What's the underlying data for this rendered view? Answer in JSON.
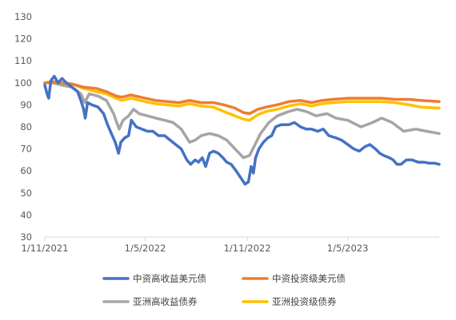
{
  "chart_data": {
    "type": "line",
    "title": "",
    "xlabel": "",
    "ylabel": "",
    "ylim": [
      30,
      130
    ],
    "y_ticks": [
      30,
      40,
      50,
      60,
      70,
      80,
      90,
      100,
      110,
      120,
      130
    ],
    "x_range": [
      "2021-11-01",
      "2023-10-13"
    ],
    "x_ticks": [
      {
        "date": "2021-11-01",
        "label": "1/11/2021"
      },
      {
        "date": "2022-05-01",
        "label": "1/5/2022"
      },
      {
        "date": "2022-11-01",
        "label": "1/11/2022"
      },
      {
        "date": "2023-05-01",
        "label": "1/5/2023"
      }
    ],
    "grid": false,
    "legend_position": "bottom",
    "series": [
      {
        "name": "中资高收益美元债",
        "color": "#4472C4",
        "points": [
          [
            "2021-11-01",
            99
          ],
          [
            "2021-11-05",
            95
          ],
          [
            "2021-11-08",
            93
          ],
          [
            "2021-11-12",
            101
          ],
          [
            "2021-11-18",
            103
          ],
          [
            "2021-11-25",
            100
          ],
          [
            "2021-12-02",
            102
          ],
          [
            "2021-12-10",
            100
          ],
          [
            "2021-12-20",
            98
          ],
          [
            "2021-12-30",
            96
          ],
          [
            "2022-01-05",
            92
          ],
          [
            "2022-01-10",
            88
          ],
          [
            "2022-01-13",
            84
          ],
          [
            "2022-01-17",
            91
          ],
          [
            "2022-01-25",
            90
          ],
          [
            "2022-02-05",
            89
          ],
          [
            "2022-02-15",
            86
          ],
          [
            "2022-02-22",
            81
          ],
          [
            "2022-03-01",
            77
          ],
          [
            "2022-03-08",
            73
          ],
          [
            "2022-03-14",
            68
          ],
          [
            "2022-03-18",
            73
          ],
          [
            "2022-03-25",
            75
          ],
          [
            "2022-04-01",
            76
          ],
          [
            "2022-04-06",
            83
          ],
          [
            "2022-04-15",
            80
          ],
          [
            "2022-04-25",
            79
          ],
          [
            "2022-05-05",
            78
          ],
          [
            "2022-05-15",
            78
          ],
          [
            "2022-05-25",
            76
          ],
          [
            "2022-06-05",
            76
          ],
          [
            "2022-06-15",
            74
          ],
          [
            "2022-06-25",
            72
          ],
          [
            "2022-07-05",
            70
          ],
          [
            "2022-07-15",
            65
          ],
          [
            "2022-07-22",
            63
          ],
          [
            "2022-07-30",
            65
          ],
          [
            "2022-08-05",
            64
          ],
          [
            "2022-08-12",
            66
          ],
          [
            "2022-08-18",
            62
          ],
          [
            "2022-08-25",
            68
          ],
          [
            "2022-09-01",
            69
          ],
          [
            "2022-09-10",
            68
          ],
          [
            "2022-09-18",
            66
          ],
          [
            "2022-09-25",
            64
          ],
          [
            "2022-10-03",
            63
          ],
          [
            "2022-10-12",
            60
          ],
          [
            "2022-10-20",
            57
          ],
          [
            "2022-10-28",
            54
          ],
          [
            "2022-11-03",
            55
          ],
          [
            "2022-11-08",
            62
          ],
          [
            "2022-11-12",
            59
          ],
          [
            "2022-11-16",
            66
          ],
          [
            "2022-11-22",
            70
          ],
          [
            "2022-11-30",
            73
          ],
          [
            "2022-12-08",
            75
          ],
          [
            "2022-12-15",
            76
          ],
          [
            "2022-12-22",
            80
          ],
          [
            "2023-01-01",
            81
          ],
          [
            "2023-01-15",
            81
          ],
          [
            "2023-01-25",
            82
          ],
          [
            "2023-02-05",
            80
          ],
          [
            "2023-02-15",
            79
          ],
          [
            "2023-02-25",
            79
          ],
          [
            "2023-03-08",
            78
          ],
          [
            "2023-03-18",
            79
          ],
          [
            "2023-03-28",
            76
          ],
          [
            "2023-04-10",
            75
          ],
          [
            "2023-04-20",
            74
          ],
          [
            "2023-05-01",
            72
          ],
          [
            "2023-05-12",
            70
          ],
          [
            "2023-05-22",
            69
          ],
          [
            "2023-06-01",
            71
          ],
          [
            "2023-06-10",
            72
          ],
          [
            "2023-06-20",
            70
          ],
          [
            "2023-06-28",
            68
          ],
          [
            "2023-07-05",
            67
          ],
          [
            "2023-07-15",
            66
          ],
          [
            "2023-07-22",
            65
          ],
          [
            "2023-07-29",
            63
          ],
          [
            "2023-08-05",
            63
          ],
          [
            "2023-08-15",
            65
          ],
          [
            "2023-08-25",
            65
          ],
          [
            "2023-09-05",
            64
          ],
          [
            "2023-09-15",
            64
          ],
          [
            "2023-09-25",
            63.5
          ],
          [
            "2023-10-05",
            63.5
          ],
          [
            "2023-10-13",
            63
          ]
        ]
      },
      {
        "name": "中资投资级美元债",
        "color": "#ED7D31",
        "points": [
          [
            "2021-11-01",
            100
          ],
          [
            "2021-11-15",
            100.5
          ],
          [
            "2021-12-01",
            100
          ],
          [
            "2021-12-20",
            99.5
          ],
          [
            "2022-01-10",
            98
          ],
          [
            "2022-02-01",
            97.5
          ],
          [
            "2022-02-20",
            96
          ],
          [
            "2022-03-10",
            94
          ],
          [
            "2022-03-20",
            93.5
          ],
          [
            "2022-04-05",
            94.5
          ],
          [
            "2022-05-01",
            93
          ],
          [
            "2022-05-20",
            92
          ],
          [
            "2022-06-10",
            91.5
          ],
          [
            "2022-07-01",
            91
          ],
          [
            "2022-07-20",
            92
          ],
          [
            "2022-08-10",
            91
          ],
          [
            "2022-09-01",
            91
          ],
          [
            "2022-09-20",
            90
          ],
          [
            "2022-10-10",
            88.5
          ],
          [
            "2022-10-25",
            86.5
          ],
          [
            "2022-11-05",
            86
          ],
          [
            "2022-11-20",
            88
          ],
          [
            "2022-12-05",
            89
          ],
          [
            "2022-12-25",
            90
          ],
          [
            "2023-01-15",
            91.5
          ],
          [
            "2023-02-05",
            92
          ],
          [
            "2023-02-25",
            91
          ],
          [
            "2023-03-15",
            92
          ],
          [
            "2023-04-05",
            92.5
          ],
          [
            "2023-05-01",
            93
          ],
          [
            "2023-06-01",
            93
          ],
          [
            "2023-07-01",
            93
          ],
          [
            "2023-07-25",
            92.5
          ],
          [
            "2023-08-20",
            92.5
          ],
          [
            "2023-09-10",
            92
          ],
          [
            "2023-10-13",
            91.5
          ]
        ]
      },
      {
        "name": "亚洲高收益债券",
        "color": "#A5A5A5",
        "points": [
          [
            "2021-11-01",
            100
          ],
          [
            "2021-11-15",
            100
          ],
          [
            "2021-12-01",
            99
          ],
          [
            "2021-12-20",
            98
          ],
          [
            "2022-01-05",
            95
          ],
          [
            "2022-01-12",
            91
          ],
          [
            "2022-01-20",
            95
          ],
          [
            "2022-02-05",
            94
          ],
          [
            "2022-02-20",
            92
          ],
          [
            "2022-03-05",
            86
          ],
          [
            "2022-03-15",
            79
          ],
          [
            "2022-03-22",
            83
          ],
          [
            "2022-04-01",
            85
          ],
          [
            "2022-04-10",
            88
          ],
          [
            "2022-04-20",
            86
          ],
          [
            "2022-05-05",
            85
          ],
          [
            "2022-05-20",
            84
          ],
          [
            "2022-06-05",
            83
          ],
          [
            "2022-06-20",
            82
          ],
          [
            "2022-07-05",
            79
          ],
          [
            "2022-07-20",
            73
          ],
          [
            "2022-07-30",
            74
          ],
          [
            "2022-08-10",
            76
          ],
          [
            "2022-08-25",
            77
          ],
          [
            "2022-09-10",
            76
          ],
          [
            "2022-09-25",
            74
          ],
          [
            "2022-10-10",
            70
          ],
          [
            "2022-10-25",
            66
          ],
          [
            "2022-11-05",
            67
          ],
          [
            "2022-11-15",
            72
          ],
          [
            "2022-11-25",
            77
          ],
          [
            "2022-12-10",
            82
          ],
          [
            "2022-12-25",
            85
          ],
          [
            "2023-01-15",
            87
          ],
          [
            "2023-01-30",
            88
          ],
          [
            "2023-02-15",
            87
          ],
          [
            "2023-03-05",
            85
          ],
          [
            "2023-03-25",
            86
          ],
          [
            "2023-04-10",
            84
          ],
          [
            "2023-05-01",
            83
          ],
          [
            "2023-05-25",
            80
          ],
          [
            "2023-06-15",
            82
          ],
          [
            "2023-07-01",
            84
          ],
          [
            "2023-07-20",
            82
          ],
          [
            "2023-08-10",
            78
          ],
          [
            "2023-09-01",
            79
          ],
          [
            "2023-09-20",
            78
          ],
          [
            "2023-10-13",
            77
          ]
        ]
      },
      {
        "name": "亚洲投资级债券",
        "color": "#FFC000",
        "points": [
          [
            "2021-11-01",
            100
          ],
          [
            "2021-11-15",
            100.5
          ],
          [
            "2021-12-01",
            100
          ],
          [
            "2021-12-20",
            99.5
          ],
          [
            "2022-01-10",
            97.5
          ],
          [
            "2022-02-01",
            96
          ],
          [
            "2022-02-20",
            95
          ],
          [
            "2022-03-10",
            93
          ],
          [
            "2022-03-20",
            92
          ],
          [
            "2022-04-05",
            93
          ],
          [
            "2022-05-01",
            91.5
          ],
          [
            "2022-05-20",
            90.5
          ],
          [
            "2022-06-10",
            90
          ],
          [
            "2022-07-01",
            89.5
          ],
          [
            "2022-07-20",
            90.5
          ],
          [
            "2022-08-10",
            89.5
          ],
          [
            "2022-09-01",
            89
          ],
          [
            "2022-09-20",
            87
          ],
          [
            "2022-10-10",
            85
          ],
          [
            "2022-10-25",
            83.5
          ],
          [
            "2022-11-05",
            83
          ],
          [
            "2022-11-20",
            85.5
          ],
          [
            "2022-12-05",
            87
          ],
          [
            "2022-12-25",
            88
          ],
          [
            "2023-01-15",
            89.5
          ],
          [
            "2023-02-05",
            90.5
          ],
          [
            "2023-02-25",
            89.5
          ],
          [
            "2023-03-15",
            90.5
          ],
          [
            "2023-04-05",
            91
          ],
          [
            "2023-05-01",
            91.5
          ],
          [
            "2023-06-01",
            91.5
          ],
          [
            "2023-07-01",
            91.5
          ],
          [
            "2023-07-25",
            91
          ],
          [
            "2023-08-20",
            90
          ],
          [
            "2023-09-10",
            89
          ],
          [
            "2023-10-13",
            88.5
          ]
        ]
      }
    ]
  }
}
